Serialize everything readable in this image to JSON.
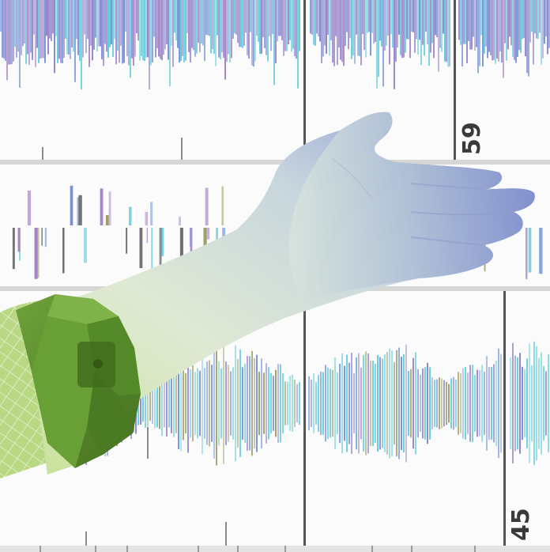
{
  "image": {
    "subject": "hand-with-armband-over-signal-plot",
    "strip_labels": [
      "59",
      "45"
    ],
    "colors": {
      "background": "#fbfbfb",
      "grid": "#c8c8c8",
      "divider": "#444444",
      "wave_purple": "#8a7fc9",
      "wave_blue": "#6f8fd6",
      "wave_cyan": "#5ccbd9",
      "wave_violet": "#a27fc6",
      "wave_olive": "#9a9a60",
      "hand_light": "#e4eee0",
      "hand_mid": "#b9cbd6",
      "hand_blue": "#7f8fcf",
      "armband_green": "#5c8f2f",
      "sleeve_green": "#b7d77d"
    }
  }
}
